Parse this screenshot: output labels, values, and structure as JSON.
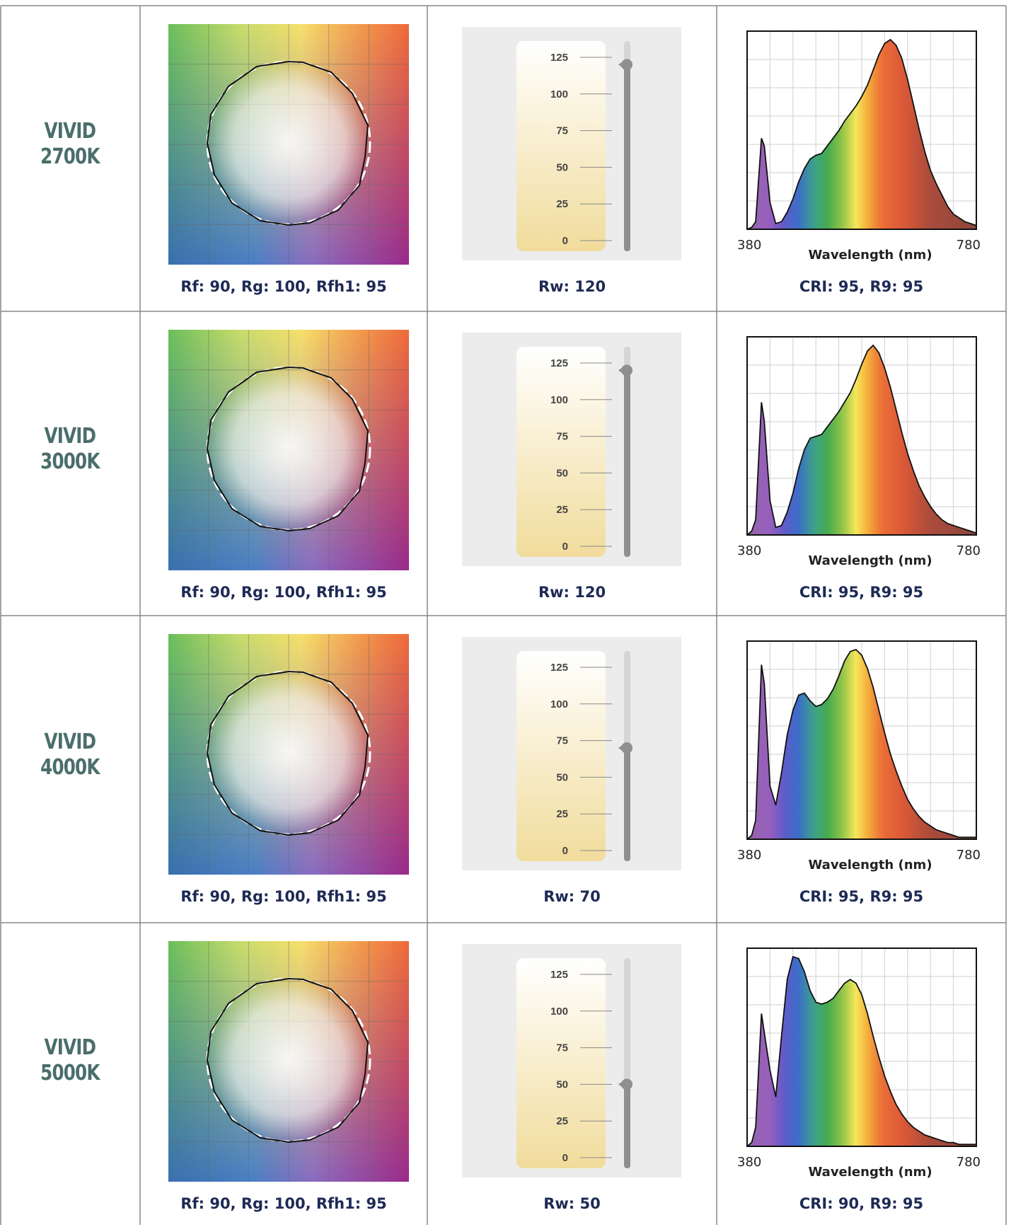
{
  "rows": [
    {
      "label_line1": "VIVID",
      "label_line2": "2700K",
      "color_caption": "Rf: 90, Rg: 100, Rfh1: 95",
      "rw_caption": "Rw: 120",
      "spectrum_caption": "CRI: 95, R9: 95"
    },
    {
      "label_line1": "VIVID",
      "label_line2": "3000K",
      "color_caption": "Rf: 90, Rg: 100, Rfh1: 95",
      "rw_caption": "Rw: 120",
      "spectrum_caption": "CRI: 95, R9: 95"
    },
    {
      "label_line1": "VIVID",
      "label_line2": "4000K",
      "color_caption": "Rf: 90, Rg: 100, Rfh1: 95",
      "rw_caption": "Rw: 70",
      "spectrum_caption": "CRI: 95, R9: 95"
    },
    {
      "label_line1": "VIVID",
      "label_line2": "5000K",
      "color_caption": "Rf: 90, Rg: 100, Rfh1: 95",
      "rw_caption": "Rw: 50",
      "spectrum_caption": "CRI: 90, R9: 95"
    }
  ],
  "chart_data": [
    {
      "type": "line",
      "chart": "spectrum",
      "xlabel": "Wavelength (nm)",
      "x_tick_labels": [
        "380",
        "780"
      ],
      "xlim": [
        380,
        780
      ],
      "series": [
        {
          "x": [
            380,
            388,
            395,
            405,
            410,
            420,
            430,
            440,
            450,
            460,
            470,
            480,
            490,
            500,
            510,
            520,
            530,
            540,
            550,
            560,
            570,
            580,
            590,
            600,
            610,
            620,
            630,
            640,
            650,
            660,
            670,
            680,
            690,
            700,
            710,
            720,
            730,
            740,
            750,
            760,
            770,
            780
          ],
          "y": [
            0,
            1,
            4,
            48,
            44,
            14,
            3,
            4,
            9,
            16,
            25,
            32,
            37,
            39,
            40,
            44,
            48,
            52,
            57,
            61,
            65,
            70,
            76,
            84,
            92,
            98,
            100,
            97,
            90,
            79,
            66,
            53,
            41,
            31,
            24,
            18,
            12,
            8,
            6,
            4,
            3,
            2
          ]
        },
        {
          "x": [
            380,
            388,
            395,
            405,
            410,
            420,
            430,
            440,
            450,
            460,
            470,
            480,
            490,
            500,
            510,
            520,
            530,
            540,
            550,
            560,
            570,
            580,
            590,
            600,
            610,
            620,
            630,
            640,
            650,
            660,
            670,
            680,
            690,
            700,
            710,
            720,
            730,
            740,
            750,
            760,
            770,
            780
          ],
          "y": [
            0,
            2,
            8,
            70,
            60,
            18,
            4,
            5,
            12,
            22,
            35,
            45,
            51,
            52,
            53,
            57,
            61,
            65,
            70,
            75,
            82,
            90,
            97,
            100,
            96,
            88,
            78,
            66,
            54,
            43,
            34,
            26,
            20,
            15,
            11,
            8,
            6,
            5,
            4,
            3,
            2,
            1
          ]
        },
        {
          "x": [
            380,
            388,
            395,
            405,
            410,
            420,
            430,
            440,
            450,
            460,
            470,
            480,
            490,
            500,
            510,
            520,
            530,
            540,
            550,
            560,
            570,
            580,
            590,
            600,
            610,
            620,
            630,
            640,
            650,
            660,
            670,
            680,
            690,
            700,
            710,
            720,
            730,
            740,
            750,
            760,
            770,
            780
          ],
          "y": [
            0,
            2,
            10,
            92,
            82,
            28,
            18,
            35,
            55,
            68,
            76,
            77,
            73,
            70,
            71,
            74,
            79,
            86,
            94,
            99,
            100,
            97,
            90,
            80,
            68,
            56,
            45,
            36,
            28,
            21,
            16,
            12,
            9,
            7,
            5,
            4,
            3,
            2,
            1,
            1,
            1,
            1
          ]
        },
        {
          "x": [
            380,
            388,
            395,
            405,
            410,
            420,
            430,
            440,
            450,
            460,
            470,
            480,
            490,
            500,
            510,
            520,
            530,
            540,
            550,
            560,
            570,
            580,
            590,
            600,
            610,
            620,
            630,
            640,
            650,
            660,
            670,
            680,
            690,
            700,
            710,
            720,
            730,
            740,
            750,
            760,
            770,
            780
          ],
          "y": [
            0,
            2,
            10,
            70,
            60,
            40,
            26,
            58,
            88,
            100,
            99,
            92,
            82,
            76,
            75,
            76,
            78,
            82,
            86,
            88,
            86,
            80,
            70,
            58,
            47,
            37,
            29,
            22,
            17,
            13,
            10,
            8,
            6,
            5,
            4,
            3,
            2,
            2,
            1,
            1,
            1,
            1
          ]
        }
      ]
    },
    {
      "type": "bar",
      "chart": "rw-slider",
      "y_tick_labels": [
        "125",
        "100",
        "75",
        "50",
        "25",
        "0"
      ],
      "ylim": [
        0,
        125
      ],
      "values": [
        120,
        120,
        70,
        50
      ]
    }
  ]
}
